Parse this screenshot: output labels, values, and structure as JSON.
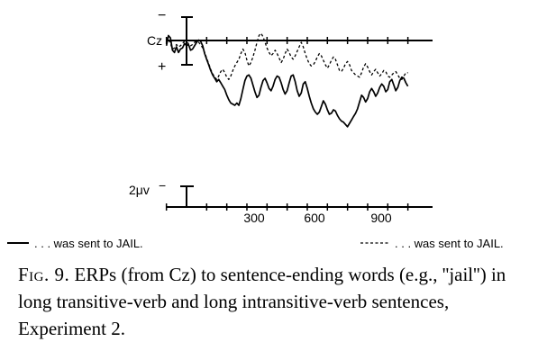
{
  "figure": {
    "electrode_label": "Cz",
    "polarity_top": "−",
    "polarity_bottom": "+",
    "scale_label": "2μv",
    "scale_sign": "−",
    "x_tick_labels": [
      "300",
      "600",
      "900"
    ]
  },
  "legend": {
    "solid_text": ". . . was sent to JAIL.",
    "dashed_text": ". . . was sent to JAIL."
  },
  "caption": {
    "label": "Fig. 9.",
    "text": "ERPs (from Cz) to sentence-ending words (e.g., ''jail'') in long transitive-verb and long intransitive-verb sentences, Experiment 2."
  },
  "chart_data": {
    "type": "line",
    "x_unit": "ms",
    "xlim": [
      -100,
      1100
    ],
    "x_ticks": [
      300,
      600,
      900
    ],
    "y_unit": "μV",
    "y_polarity": "negative up",
    "series": [
      {
        "name": ". . . was sent to JAIL.",
        "style": "solid",
        "x": [
          -100,
          -90,
          -80,
          -70,
          -60,
          -50,
          -40,
          -30,
          -20,
          -10,
          0,
          10,
          20,
          30,
          40,
          50,
          60,
          70,
          80,
          90,
          100,
          110,
          120,
          130,
          140,
          150,
          160,
          170,
          180,
          190,
          200,
          210,
          220,
          230,
          240,
          250,
          260,
          270,
          280,
          290,
          300,
          310,
          320,
          330,
          340,
          350,
          360,
          370,
          380,
          390,
          400,
          410,
          420,
          430,
          440,
          450,
          460,
          470,
          480,
          490,
          500,
          510,
          520,
          530,
          540,
          550,
          560,
          570,
          580,
          590,
          600,
          610,
          620,
          630,
          640,
          650,
          660,
          670,
          680,
          690,
          700,
          710,
          720,
          730,
          740,
          750,
          760,
          770,
          780,
          790,
          800,
          810,
          820,
          830,
          840,
          850,
          860,
          870,
          880,
          890,
          900,
          910,
          920,
          930,
          940,
          950,
          960,
          970,
          980,
          990,
          1000,
          1010,
          1020,
          1030,
          1040,
          1050,
          1060,
          1070,
          1080,
          1090,
          1100
        ],
        "y": [
          0.3,
          -0.6,
          -0.4,
          0.7,
          0.9,
          0.4,
          0.9,
          0.6,
          0.5,
          0.1,
          0.3,
          0.2,
          0.7,
          0.6,
          0.3,
          0.0,
          -0.2,
          -0.1,
          0.3,
          1.0,
          1.5,
          2.0,
          2.5,
          2.9,
          3.2,
          3.5,
          3.3,
          3.6,
          3.9,
          4.2,
          4.7,
          5.1,
          5.4,
          5.5,
          5.6,
          5.4,
          5.6,
          5.0,
          4.2,
          3.4,
          3.0,
          2.9,
          3.2,
          3.8,
          4.4,
          4.9,
          4.7,
          4.0,
          3.4,
          3.2,
          3.6,
          4.1,
          4.3,
          3.9,
          3.3,
          3.0,
          3.1,
          3.6,
          4.2,
          4.6,
          4.3,
          3.6,
          3.0,
          2.9,
          3.5,
          4.3,
          4.8,
          4.5,
          3.7,
          3.5,
          4.1,
          4.8,
          5.4,
          5.9,
          6.2,
          6.4,
          6.2,
          5.7,
          5.2,
          5.5,
          6.0,
          6.4,
          6.3,
          6.0,
          6.1,
          6.5,
          6.8,
          7.0,
          7.1,
          7.3,
          7.5,
          7.2,
          6.9,
          6.6,
          6.3,
          5.9,
          5.3,
          4.7,
          4.9,
          5.3,
          5.0,
          4.4,
          4.1,
          4.4,
          4.8,
          4.5,
          4.0,
          3.7,
          3.9,
          4.4,
          4.2,
          3.5,
          3.3,
          3.8,
          4.3,
          4.0,
          3.4,
          3.1,
          3.2,
          3.6,
          3.9
        ]
      },
      {
        "name": ". . . was sent to JAIL.",
        "style": "dashed",
        "x": [
          -100,
          -90,
          -80,
          -70,
          -60,
          -50,
          -40,
          -30,
          -20,
          -10,
          0,
          10,
          20,
          30,
          40,
          50,
          60,
          70,
          80,
          90,
          100,
          110,
          120,
          130,
          140,
          150,
          160,
          170,
          180,
          190,
          200,
          210,
          220,
          230,
          240,
          250,
          260,
          270,
          280,
          290,
          300,
          310,
          320,
          330,
          340,
          350,
          360,
          370,
          380,
          390,
          400,
          410,
          420,
          430,
          440,
          450,
          460,
          470,
          480,
          490,
          500,
          510,
          520,
          530,
          540,
          550,
          560,
          570,
          580,
          590,
          600,
          610,
          620,
          630,
          640,
          650,
          660,
          670,
          680,
          690,
          700,
          710,
          720,
          730,
          740,
          750,
          760,
          770,
          780,
          790,
          800,
          810,
          820,
          830,
          840,
          850,
          860,
          870,
          880,
          890,
          900,
          910,
          920,
          930,
          940,
          950,
          960,
          970,
          980,
          990,
          1000,
          1010,
          1020,
          1030,
          1040,
          1050,
          1060,
          1070,
          1080,
          1090,
          1100
        ],
        "y": [
          0.0,
          -0.3,
          0.1,
          0.6,
          0.5,
          0.2,
          0.4,
          0.3,
          0.1,
          -0.1,
          0.0,
          0.1,
          0.3,
          0.2,
          0.0,
          -0.1,
          0.0,
          0.2,
          0.5,
          0.9,
          1.4,
          1.9,
          2.4,
          2.8,
          3.1,
          3.3,
          3.0,
          2.6,
          2.4,
          2.7,
          3.1,
          3.3,
          3.0,
          2.5,
          2.1,
          1.8,
          1.5,
          1.0,
          0.6,
          0.9,
          1.6,
          2.1,
          1.8,
          1.3,
          0.7,
          0.0,
          -0.6,
          -0.8,
          -0.5,
          0.0,
          0.5,
          0.9,
          1.2,
          1.0,
          0.7,
          1.0,
          1.4,
          1.8,
          1.5,
          1.0,
          0.6,
          0.9,
          1.3,
          1.5,
          1.2,
          0.8,
          0.4,
          0.0,
          0.4,
          1.0,
          1.5,
          1.9,
          2.1,
          2.0,
          1.7,
          1.3,
          1.0,
          1.2,
          1.6,
          2.0,
          2.3,
          2.0,
          1.6,
          1.3,
          1.5,
          2.0,
          2.5,
          2.6,
          2.3,
          1.9,
          1.7,
          2.0,
          2.5,
          2.7,
          2.9,
          3.0,
          3.1,
          2.7,
          2.2,
          1.9,
          2.2,
          2.6,
          2.9,
          2.6,
          2.4,
          2.7,
          3.0,
          2.8,
          2.5,
          2.6,
          3.0,
          3.1,
          2.9,
          2.7,
          2.6,
          2.9,
          3.2,
          3.3,
          3.0,
          2.7,
          2.7
        ]
      }
    ]
  }
}
